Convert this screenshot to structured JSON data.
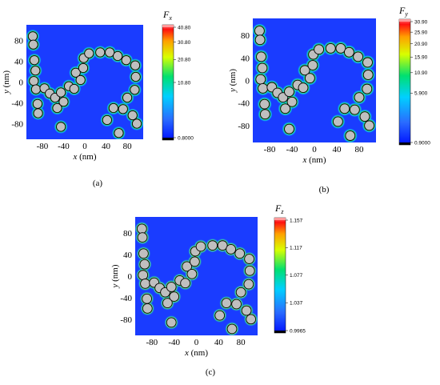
{
  "figure": {
    "panels": [
      {
        "id": "a",
        "caption": "(a)",
        "component": "F",
        "component_sub": "x",
        "xlabel_var": "x",
        "xlabel_unit": "(nm)",
        "ylabel_var": "y",
        "ylabel_unit": "(nm)",
        "xticks": [
          "-80",
          "-40",
          "0",
          "40",
          "80"
        ],
        "yticks": [
          "80",
          "40",
          "0",
          "-40",
          "-80"
        ],
        "colorbar_ticks": [
          "40.80",
          "30.80",
          "20.80",
          "10.80",
          "0.8000"
        ],
        "colorbar_range": [
          0.8,
          40.8
        ],
        "colorbar_scale": "nonlinear"
      },
      {
        "id": "b",
        "caption": "(b)",
        "component": "F",
        "component_sub": "y",
        "xlabel_var": "x",
        "xlabel_unit": "(nm)",
        "ylabel_var": "y",
        "ylabel_unit": "(nm)",
        "xticks": [
          "-80",
          "-40",
          "0",
          "40",
          "80"
        ],
        "yticks": [
          "80",
          "40",
          "0",
          "-40",
          "-80"
        ],
        "colorbar_ticks": [
          "30.90",
          "25.90",
          "20.90",
          "15.90",
          "10.90",
          "5.900",
          "0.9000"
        ],
        "colorbar_range": [
          0.9,
          30.9
        ],
        "colorbar_scale": "nonlinear"
      },
      {
        "id": "c",
        "caption": "(c)",
        "component": "F",
        "component_sub": "z",
        "xlabel_var": "x",
        "xlabel_unit": "(nm)",
        "ylabel_var": "y",
        "ylabel_unit": "(nm)",
        "xticks": [
          "-80",
          "-40",
          "0",
          "40",
          "80"
        ],
        "yticks": [
          "80",
          "40",
          "0",
          "-40",
          "-80"
        ],
        "colorbar_ticks": [
          "1.157",
          "1.117",
          "1.077",
          "1.037",
          "0.9965"
        ],
        "colorbar_range": [
          0.9965,
          1.157
        ],
        "colorbar_scale": "linear"
      }
    ],
    "nanoparticle_centers_nm": [
      [
        -98,
        88
      ],
      [
        -97,
        72
      ],
      [
        -95,
        42
      ],
      [
        -93,
        22
      ],
      [
        -96,
        2
      ],
      [
        -92,
        -14
      ],
      [
        -89,
        -42
      ],
      [
        -88,
        -60
      ],
      [
        -76,
        -12
      ],
      [
        -66,
        -22
      ],
      [
        -56,
        -30
      ],
      [
        -52,
        -50
      ],
      [
        -45,
        -20
      ],
      [
        -40,
        -38
      ],
      [
        -30,
        -8
      ],
      [
        -20,
        -13
      ],
      [
        -17,
        18
      ],
      [
        -3,
        27
      ],
      [
        -8,
        4
      ],
      [
        -2,
        46
      ],
      [
        8,
        55
      ],
      [
        29,
        57
      ],
      [
        47,
        57
      ],
      [
        62,
        50
      ],
      [
        78,
        42
      ],
      [
        95,
        32
      ],
      [
        96,
        10
      ],
      [
        94,
        -15
      ],
      [
        80,
        -30
      ],
      [
        54,
        -50
      ],
      [
        72,
        -52
      ],
      [
        90,
        -64
      ],
      [
        98,
        -80
      ],
      [
        42,
        -73
      ],
      [
        64,
        -98
      ],
      [
        -45,
        -86
      ]
    ],
    "particle_radius_nm": 8.5,
    "colors": {
      "background_field": "#1a3cff",
      "particle_fill": "#bfbfbf",
      "particle_edge": "#000000",
      "halo_high": "#ffff30",
      "halo_mid": "#20e070",
      "halo_low": "#00c8ff"
    }
  }
}
